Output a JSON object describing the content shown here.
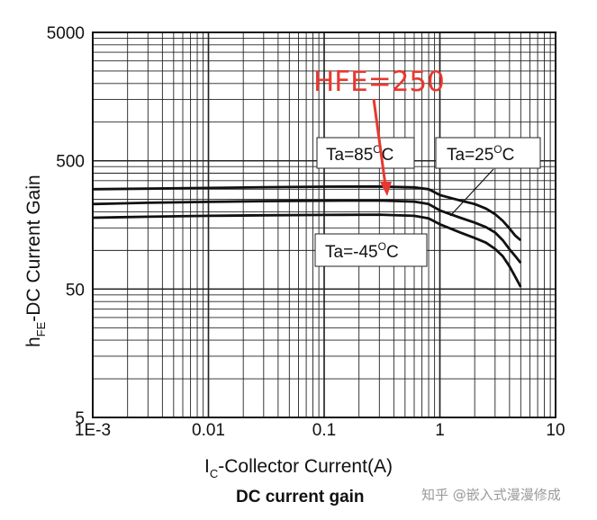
{
  "chart_data": {
    "type": "line",
    "title": "DC current gain",
    "xlabel_main": "I",
    "xlabel_sub": "C",
    "xlabel_rest": "-Collector Current(A)",
    "ylabel_main": "h",
    "ylabel_sub": "FE",
    "ylabel_rest": "-DC Current Gain",
    "xscale": "log",
    "yscale": "log",
    "xlim": [
      0.001,
      10
    ],
    "ylim": [
      5,
      5000
    ],
    "x_ticks": [
      0.001,
      0.01,
      0.1,
      1,
      10
    ],
    "x_tick_labels": [
      "1E-3",
      "0.01",
      "0.1",
      "1",
      "10"
    ],
    "y_ticks": [
      5,
      50,
      500,
      5000
    ],
    "y_tick_labels": [
      "5",
      "50",
      "500",
      "5000"
    ],
    "grid": true,
    "series": [
      {
        "name": "Ta=85°C",
        "x": [
          0.001,
          0.003,
          0.01,
          0.03,
          0.1,
          0.3,
          0.6,
          0.8,
          1.0,
          1.5,
          2.0,
          2.5,
          3.0,
          3.5,
          4.0,
          4.5,
          5.0
        ],
        "y": [
          300,
          303,
          307,
          311,
          314,
          315,
          310,
          300,
          270,
          245,
          230,
          212,
          192,
          170,
          148,
          130,
          120
        ]
      },
      {
        "name": "Ta=25°C",
        "x": [
          0.001,
          0.003,
          0.01,
          0.03,
          0.1,
          0.3,
          0.6,
          0.8,
          1.0,
          1.5,
          2.0,
          2.5,
          3.0,
          3.5,
          4.0,
          4.5,
          5.0
        ],
        "y": [
          230,
          235,
          239,
          242,
          244,
          245,
          240,
          230,
          205,
          180,
          165,
          152,
          138,
          120,
          102,
          90,
          80
        ]
      },
      {
        "name": "Ta=-45°C",
        "x": [
          0.001,
          0.003,
          0.01,
          0.03,
          0.1,
          0.3,
          0.6,
          0.8,
          1.0,
          1.5,
          2.0,
          2.5,
          3.0,
          3.5,
          4.0,
          4.5,
          5.0
        ],
        "y": [
          180,
          183,
          186,
          188,
          189,
          190,
          186,
          178,
          160,
          138,
          125,
          115,
          103,
          90,
          75,
          62,
          52
        ]
      }
    ],
    "annotations": {
      "hfe_label": "HFE=250",
      "hfe_point": {
        "x": 0.35,
        "y": 245
      },
      "label_85": {
        "text": "Ta=85",
        "sup": "O",
        "unit": "C"
      },
      "label_25": {
        "text": "Ta=25",
        "sup": "O",
        "unit": "C"
      },
      "label_m45": {
        "text": "Ta=-45",
        "sup": "O",
        "unit": "C"
      }
    }
  },
  "watermark": "知乎 @嵌入式漫漫修成"
}
